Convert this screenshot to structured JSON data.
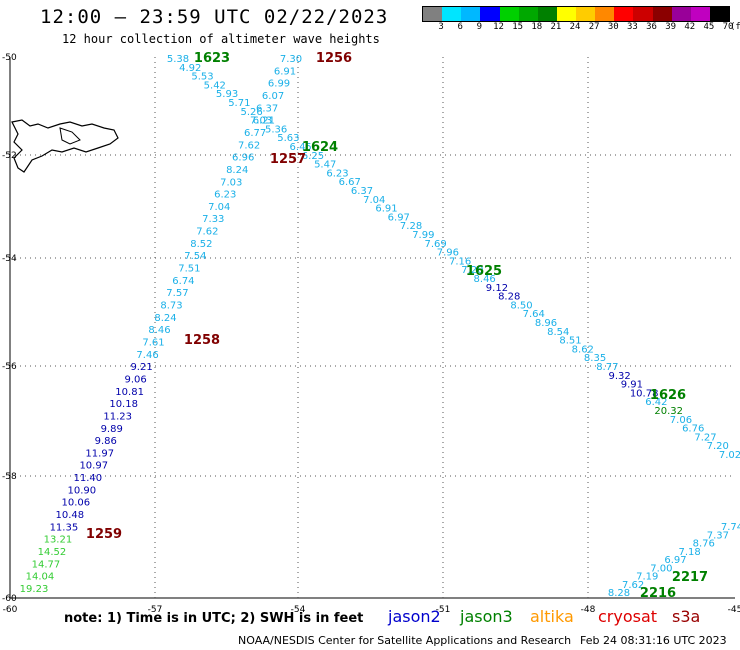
{
  "header": {
    "title": "12:00 — 23:59 UTC 02/22/2023",
    "subtitle": "12 hour collection of altimeter wave heights"
  },
  "colorbar": {
    "unit": "(ft)",
    "ticks": [
      "3",
      "6",
      "9",
      "12",
      "15",
      "18",
      "21",
      "24",
      "27",
      "30",
      "33",
      "36",
      "39",
      "42",
      "45",
      "70"
    ],
    "colors": [
      "#808080",
      "#00e5ff",
      "#00b8ff",
      "#0000ff",
      "#00d000",
      "#00a800",
      "#008000",
      "#ffff00",
      "#ffcc00",
      "#ff8800",
      "#ff0000",
      "#cc0000",
      "#8b0000",
      "#990099",
      "#c000c0",
      "#000000"
    ]
  },
  "axes": {
    "lon_labels": [
      "-60",
      "-57",
      "-54",
      "-51",
      "-48",
      "-45"
    ],
    "lat_labels": [
      "-50",
      "-52",
      "-54",
      "-56",
      "-58",
      "-60"
    ]
  },
  "passes": [
    {
      "label": "1623",
      "color": "#008000"
    },
    {
      "label": "1256",
      "color": "#800000"
    },
    {
      "label": "1624",
      "color": "#008000"
    },
    {
      "label": "1257",
      "color": "#800000"
    },
    {
      "label": "1625",
      "color": "#008000"
    },
    {
      "label": "1258",
      "color": "#800000"
    },
    {
      "label": "1626",
      "color": "#008000"
    },
    {
      "label": "1259",
      "color": "#800000"
    },
    {
      "label": "2217",
      "color": "#008000"
    },
    {
      "label": "2216",
      "color": "#008000"
    }
  ],
  "tracks": {
    "track_a": [
      "5.38",
      "4.92",
      "5.53",
      "5.42",
      "5.93",
      "5.71",
      "5.26",
      "6.21",
      "5.36",
      "5.63",
      "6.45",
      "6.25",
      "5.47",
      "6.23",
      "6.67",
      "6.37",
      "7.04",
      "6.91",
      "6.97",
      "7.28",
      "7.99",
      "7.69",
      "7.96",
      "7.16",
      "7.20",
      "8.46",
      "9.12",
      "8.28",
      "8.50",
      "7.64",
      "8.96",
      "8.54",
      "8.51",
      "8.62",
      "8.35",
      "8.77",
      "9.32",
      "9.91",
      "10.78",
      "6.42",
      "20.32",
      "7.06",
      "6.76",
      "7.27",
      "7.20",
      "7.02"
    ],
    "track_b": [
      "7.30",
      "6.91",
      "6.99",
      "6.07",
      "6.37",
      "7.03",
      "6.77",
      "7.62",
      "6.96",
      "8.24",
      "7.03",
      "6.23",
      "7.04",
      "7.33",
      "7.62",
      "8.52",
      "7.54",
      "7.51",
      "6.74",
      "7.57",
      "8.73",
      "8.24",
      "8.46",
      "7.61",
      "7.46",
      "9.21",
      "9.06",
      "10.81",
      "10.18",
      "11.23",
      "9.89",
      "9.86",
      "11.97",
      "10.97",
      "11.40",
      "10.90",
      "10.06",
      "10.48",
      "11.35",
      "13.21",
      "14.52",
      "14.77",
      "14.04",
      "19.23"
    ],
    "track_c": [
      "8.28",
      "7.62",
      "7.19",
      "7.00",
      "6.97",
      "7.18",
      "8.76",
      "7.37",
      "7.74"
    ]
  },
  "footer": {
    "note": "note: 1) Time is in UTC; 2) SWH is in feet",
    "legend": [
      {
        "label": "jason2",
        "color": "#0000cc"
      },
      {
        "label": "jason3",
        "color": "#008000"
      },
      {
        "label": "altika",
        "color": "#ff9900"
      },
      {
        "label": "cryosat",
        "color": "#dd0000"
      },
      {
        "label": "s3a",
        "color": "#990000"
      }
    ],
    "credit": "NOAA/NESDIS Center for Satellite Applications and Research",
    "timestamp": "Feb 24 08:31:16 UTC 2023"
  }
}
